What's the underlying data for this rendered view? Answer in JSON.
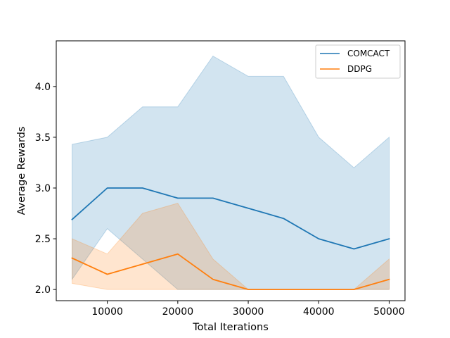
{
  "chart_data": {
    "type": "line",
    "xlabel": "Total Iterations",
    "ylabel": "Average Rewards",
    "xlim": [
      2750,
      52250
    ],
    "ylim": [
      1.89,
      4.45
    ],
    "xticks": [
      10000,
      20000,
      30000,
      40000,
      50000
    ],
    "yticks": [
      2.0,
      2.5,
      3.0,
      3.5,
      4.0
    ],
    "xtick_labels": [
      "10000",
      "20000",
      "30000",
      "40000",
      "50000"
    ],
    "ytick_labels": [
      "2.0",
      "2.5",
      "3.0",
      "3.5",
      "4.0"
    ],
    "grid": false,
    "legend_position": "top-right",
    "x": [
      5000,
      10000,
      15000,
      20000,
      25000,
      30000,
      35000,
      40000,
      45000,
      50000
    ],
    "series": [
      {
        "name": "COMCACT",
        "color": "#1f77b4",
        "band_color": "#1f77b4",
        "mean": [
          2.69,
          3.0,
          3.0,
          2.9,
          2.9,
          2.8,
          2.7,
          2.5,
          2.4,
          2.5
        ],
        "upper": [
          3.43,
          3.5,
          3.8,
          3.8,
          4.3,
          4.1,
          4.1,
          3.5,
          3.2,
          3.5
        ],
        "lower": [
          2.1,
          2.6,
          2.3,
          2.0,
          2.0,
          2.0,
          2.0,
          2.0,
          2.0,
          2.0
        ]
      },
      {
        "name": "DDPG",
        "color": "#ff7f0e",
        "band_color": "#ff7f0e",
        "mean": [
          2.31,
          2.15,
          2.25,
          2.35,
          2.1,
          2.0,
          2.0,
          2.0,
          2.0,
          2.1
        ],
        "upper": [
          2.5,
          2.35,
          2.75,
          2.85,
          2.3,
          2.0,
          2.0,
          2.0,
          2.0,
          2.3
        ],
        "lower": [
          2.06,
          2.0,
          2.0,
          2.0,
          2.0,
          2.0,
          2.0,
          2.0,
          2.0,
          2.0
        ]
      }
    ]
  }
}
